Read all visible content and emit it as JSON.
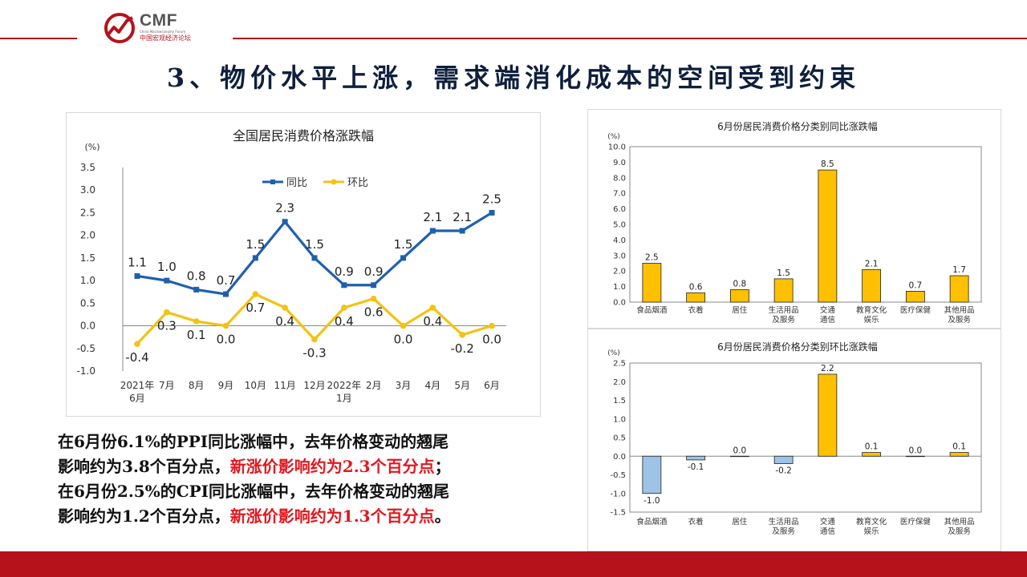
{
  "header": {
    "brand": "CMF",
    "brand_sub": "China Macroeconomy Forum",
    "brand_cn": "中国宏观经济论坛",
    "accent": "#b5121b"
  },
  "title": "3、物价水平上涨，需求端消化成本的空间受到约束",
  "summary": {
    "l1a": "在6月份6.1%的PPI同比涨幅中，去年价格变动的翘尾",
    "l2a": "影响约为3.8个百分点，",
    "l2b": "新涨价影响约为2.3个百分点",
    "l2c": "；",
    "l3a": "在6月份2.5%的CPI同比涨幅中，去年价格变动的翘尾",
    "l4a": "影响约为1.2个百分点，",
    "l4b": "新涨价影响约为1.3个百分点",
    "l4c": "。"
  },
  "chart_data": [
    {
      "type": "line",
      "title": "全国居民消费价格涨跌幅",
      "ylabel": "(%)",
      "categories": [
        "2021年 6月",
        "7月",
        "8月",
        "9月",
        "10月",
        "11月",
        "12月",
        "2022年 1月",
        "2月",
        "3月",
        "4月",
        "5月",
        "6月"
      ],
      "ylim": [
        -1.0,
        3.5
      ],
      "yticks": [
        "3.5",
        "3.0",
        "2.5",
        "2.0",
        "1.5",
        "1.0",
        "0.5",
        "0.0",
        "-0.5",
        "-1.0"
      ],
      "grid": false,
      "legend": "top-center",
      "series": [
        {
          "name": "同比",
          "color": "#1f5fae",
          "values": [
            1.1,
            1.0,
            0.8,
            0.7,
            1.5,
            2.3,
            1.5,
            0.9,
            0.9,
            1.5,
            2.1,
            2.1,
            2.5
          ],
          "labels": [
            "1.1",
            "1.0",
            "0.8",
            "0.7",
            "1.5",
            "2.3",
            "1.5",
            "0.9",
            "0.9",
            "1.5",
            "2.1",
            "2.1",
            "2.5"
          ]
        },
        {
          "name": "环比",
          "color": "#f2c314",
          "values": [
            -0.4,
            0.3,
            0.1,
            0.0,
            0.7,
            0.4,
            -0.3,
            0.4,
            0.6,
            0.0,
            0.4,
            -0.2,
            0.0
          ],
          "labels": [
            "-0.4",
            "0.3",
            "0.1",
            "0.0",
            "0.7",
            "0.4",
            "-0.3",
            "0.4",
            "0.6",
            "0.0",
            "0.4",
            "-0.2",
            "0.0"
          ]
        }
      ]
    },
    {
      "type": "bar",
      "title": "6月份居民消费价格分类别同比涨跌幅",
      "ylabel": "(%)",
      "categories": [
        "食品烟酒",
        "衣着",
        "居住",
        "生活用品 及服务",
        "交通 通信",
        "教育文化 娱乐",
        "医疗保健",
        "其他用品 及服务"
      ],
      "values": [
        2.5,
        0.6,
        0.8,
        1.5,
        8.5,
        2.1,
        0.7,
        1.7
      ],
      "labels": [
        "2.5",
        "0.6",
        "0.8",
        "1.5",
        "8.5",
        "2.1",
        "0.7",
        "1.7"
      ],
      "ylim": [
        0.0,
        10.0
      ],
      "yticks": [
        "10.0",
        "9.0",
        "8.0",
        "7.0",
        "6.0",
        "5.0",
        "4.0",
        "3.0",
        "2.0",
        "1.0",
        "0.0"
      ],
      "color": "#ffc000",
      "grid": false
    },
    {
      "type": "bar",
      "title": "6月份居民消费价格分类别环比涨跌幅",
      "ylabel": "(%)",
      "categories": [
        "食品烟酒",
        "衣着",
        "居住",
        "生活用品 及服务",
        "交通 通信",
        "教育文化 娱乐",
        "医疗保健",
        "其他用品 及服务"
      ],
      "values": [
        -1.0,
        -0.1,
        0.0,
        -0.2,
        2.2,
        0.1,
        0.0,
        0.1
      ],
      "labels": [
        "-1.0",
        "-0.1",
        "0.0",
        "-0.2",
        "2.2",
        "0.1",
        "0.0",
        "0.1"
      ],
      "ylim": [
        -1.5,
        2.5
      ],
      "yticks": [
        "2.5",
        "2.0",
        "1.5",
        "1.0",
        "0.5",
        "0.0",
        "-0.5",
        "-1.0",
        "-1.5"
      ],
      "pos_color": "#ffc000",
      "neg_color": "#9dc3e6",
      "grid": false
    }
  ]
}
